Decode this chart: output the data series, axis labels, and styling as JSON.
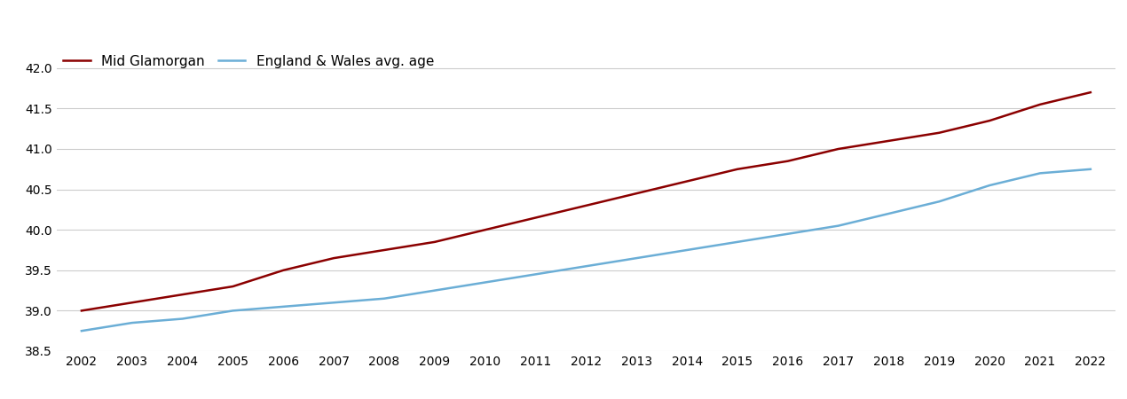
{
  "years": [
    2002,
    2003,
    2004,
    2005,
    2006,
    2007,
    2008,
    2009,
    2010,
    2011,
    2012,
    2013,
    2014,
    2015,
    2016,
    2017,
    2018,
    2019,
    2020,
    2021,
    2022
  ],
  "mid_glamorgan": [
    39.0,
    39.1,
    39.2,
    39.3,
    39.5,
    39.65,
    39.75,
    39.85,
    40.0,
    40.15,
    40.3,
    40.45,
    40.6,
    40.75,
    40.85,
    41.0,
    41.1,
    41.2,
    41.35,
    41.55,
    41.7
  ],
  "england_wales": [
    38.75,
    38.85,
    38.9,
    39.0,
    39.05,
    39.1,
    39.15,
    39.25,
    39.35,
    39.45,
    39.55,
    39.65,
    39.75,
    39.85,
    39.95,
    40.05,
    40.2,
    40.35,
    40.55,
    40.7,
    40.75
  ],
  "mid_glamorgan_color": "#8B0000",
  "england_wales_color": "#6BAED6",
  "mid_glamorgan_label": "Mid Glamorgan",
  "england_wales_label": "England & Wales avg. age",
  "ylim": [
    38.5,
    42.25
  ],
  "yticks": [
    38.5,
    39.0,
    39.5,
    40.0,
    40.5,
    41.0,
    41.5,
    42.0
  ],
  "background_color": "#ffffff",
  "grid_color": "#cccccc",
  "line_width": 1.8,
  "legend_fontsize": 11,
  "tick_fontsize": 10
}
